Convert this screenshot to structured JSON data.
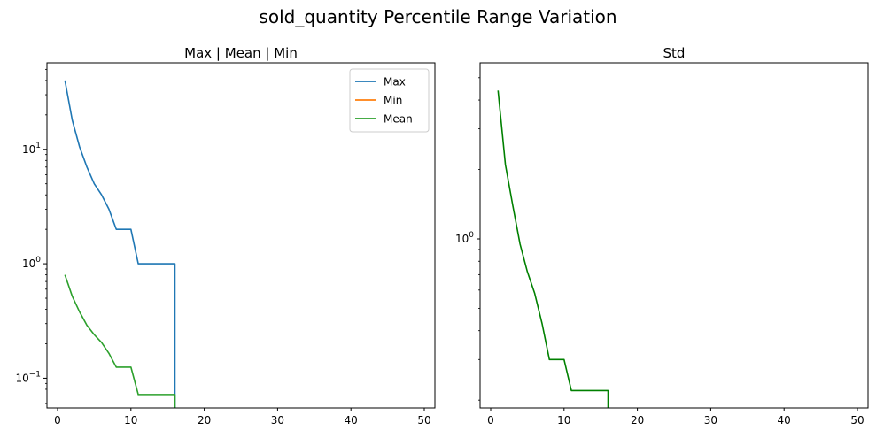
{
  "figure": {
    "suptitle": "sold_quantity Percentile Range Variation"
  },
  "chart_data": [
    {
      "type": "line",
      "title": "Max | Mean | Min",
      "xlabel": "",
      "ylabel": "",
      "xlim": [
        -1.45,
        51.45
      ],
      "ylim": [
        0.055,
        57
      ],
      "yscale": "log",
      "grid": false,
      "legend": {
        "position": "top-right"
      },
      "x_ticks": [
        0,
        10,
        20,
        30,
        40,
        50
      ],
      "y_ticks": [
        {
          "value": 0.1,
          "label": "10",
          "exp": "−1"
        },
        {
          "value": 1,
          "label": "10",
          "exp": "0"
        },
        {
          "value": 10,
          "label": "10",
          "exp": "1"
        }
      ],
      "series": [
        {
          "name": "Max",
          "color": "#1f77b4",
          "x": [
            1,
            2,
            3,
            4,
            5,
            6,
            7,
            8,
            9,
            10,
            11,
            12,
            13,
            14,
            15,
            16,
            16
          ],
          "y": [
            40,
            18,
            10.5,
            7,
            5,
            4,
            3,
            2,
            2,
            2,
            1,
            1,
            1,
            1,
            1,
            1,
            0.055
          ]
        },
        {
          "name": "Min",
          "color": "#ff7f0e",
          "x": [],
          "y": []
        },
        {
          "name": "Mean",
          "color": "#2ca02c",
          "x": [
            1,
            2,
            3,
            4,
            5,
            6,
            7,
            8,
            9,
            10,
            11,
            12,
            13,
            14,
            15,
            16,
            16
          ],
          "y": [
            0.8,
            0.52,
            0.38,
            0.29,
            0.24,
            0.205,
            0.165,
            0.125,
            0.125,
            0.125,
            0.072,
            0.072,
            0.072,
            0.072,
            0.072,
            0.072,
            0.055
          ]
        }
      ]
    },
    {
      "type": "line",
      "title": "Std",
      "xlabel": "",
      "ylabel": "",
      "xlim": [
        -1.45,
        51.45
      ],
      "ylim": [
        0.185,
        5.8
      ],
      "yscale": "log",
      "grid": false,
      "x_ticks": [
        0,
        10,
        20,
        30,
        40,
        50
      ],
      "y_ticks": [
        {
          "value": 1,
          "label": "10",
          "exp": "0"
        }
      ],
      "series": [
        {
          "color": "#008000",
          "x": [
            1,
            2,
            3,
            4,
            5,
            6,
            7,
            8,
            9,
            10,
            11,
            12,
            13,
            14,
            15,
            16,
            16
          ],
          "y": [
            4.4,
            2.1,
            1.4,
            0.95,
            0.72,
            0.58,
            0.43,
            0.3,
            0.3,
            0.3,
            0.22,
            0.22,
            0.22,
            0.22,
            0.22,
            0.22,
            0.185
          ]
        }
      ]
    }
  ]
}
